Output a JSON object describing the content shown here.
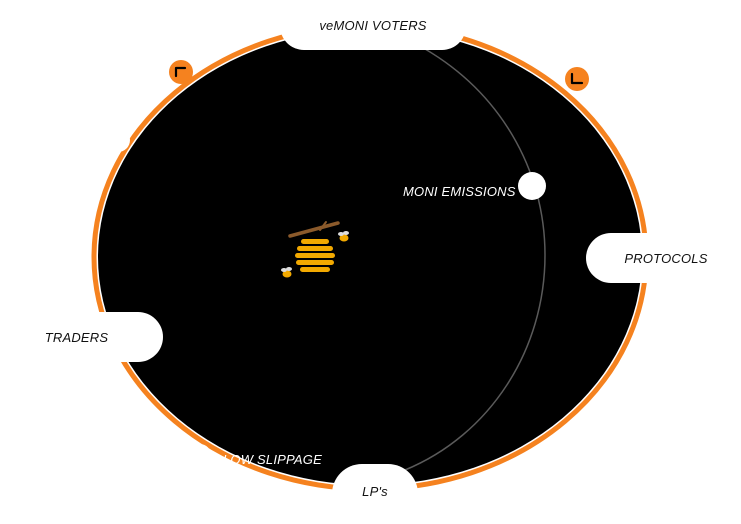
{
  "diagram": {
    "labels": {
      "top": "veMONI VOTERS",
      "emissions": "MONI EMISSIONS",
      "protocols": "PROTOCOLS",
      "traders": "TRADERS",
      "slippage": "LOW SLIPPAGE",
      "lps": "LP's"
    },
    "colors": {
      "background": "#ffffff",
      "disc": "#000000",
      "ring": "#f5821f",
      "inner_arc": "#4a4a4a",
      "node": "#ffffff",
      "honey": "#f2a900",
      "branch": "#8b5a2b"
    },
    "icons": {
      "center": "beehive-icon",
      "arrow_left": "arrow-corner-icon",
      "arrow_right": "arrow-corner-icon"
    }
  }
}
